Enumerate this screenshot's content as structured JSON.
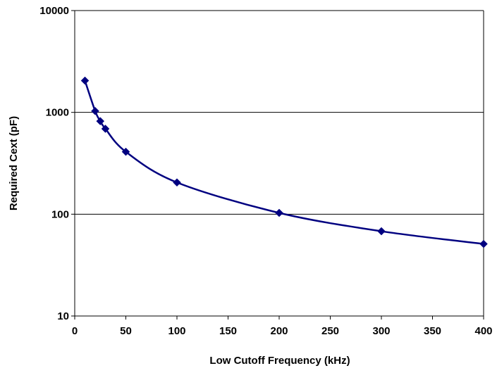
{
  "chart_data": {
    "type": "line",
    "title": "",
    "xlabel": "Low Cutoff Frequency (kHz)",
    "ylabel": "Required Cext (pF)",
    "xlim": [
      0,
      400
    ],
    "ylim": [
      10,
      10000
    ],
    "yscale": "log",
    "x_ticks": [
      0,
      50,
      100,
      150,
      200,
      250,
      300,
      350,
      400
    ],
    "y_ticks": [
      10,
      100,
      1000,
      10000
    ],
    "grid": "horizontal major gridlines",
    "legend": "none",
    "colors": {
      "series": "#000080",
      "grid": "#000000",
      "axis": "#000000"
    },
    "series": [
      {
        "x": [
          10,
          20,
          25,
          30,
          50,
          100,
          200,
          300,
          400
        ],
        "values": [
          2050,
          1030,
          820,
          690,
          410,
          205,
          103,
          68,
          51
        ]
      }
    ]
  }
}
